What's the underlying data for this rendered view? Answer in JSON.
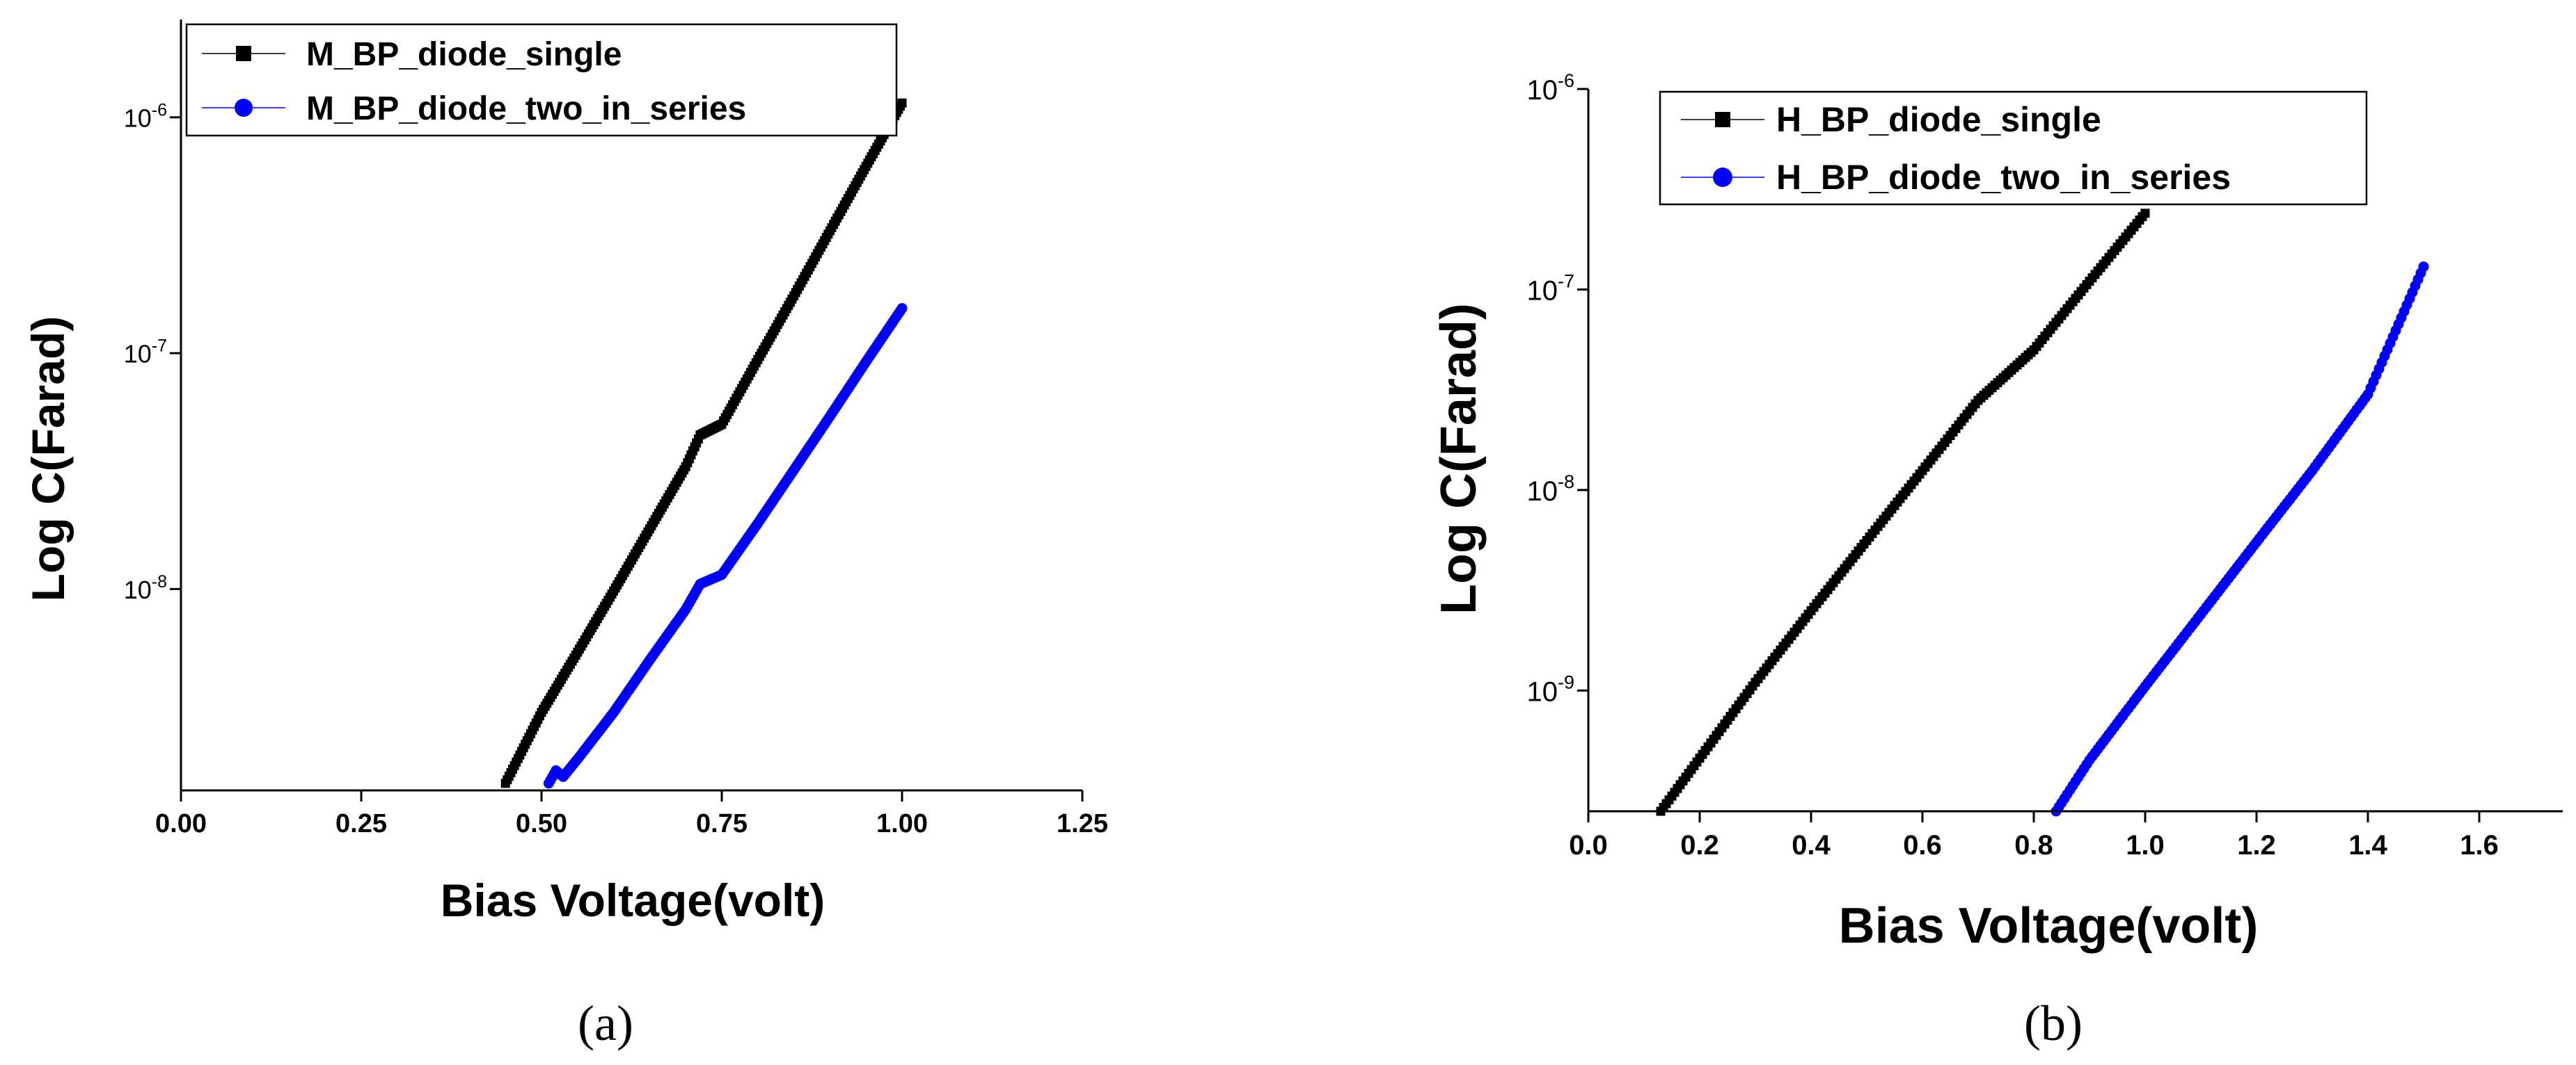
{
  "chart_data": [
    {
      "type": "line",
      "caption": "(a)",
      "xlabel": "Bias Voltage(volt)",
      "ylabel": "Log C(Farad)",
      "xscale": "linear",
      "yscale": "log",
      "xlim": [
        0,
        1.25
      ],
      "ylim": [
        1.4e-09,
        2.6e-06
      ],
      "xticks": [
        0,
        0.25,
        0.5,
        0.75,
        1.0,
        1.25
      ],
      "xtick_labels": [
        "0.00",
        "0.25",
        "0.50",
        "0.75",
        "1.00",
        "1.25"
      ],
      "yticks": [
        {
          "value": 1e-08,
          "mantissa": "10",
          "exponent": "-8"
        },
        {
          "value": 1e-07,
          "mantissa": "10",
          "exponent": "-7"
        },
        {
          "value": 1e-06,
          "mantissa": "10",
          "exponent": "-6"
        }
      ],
      "legend_position": "top-right",
      "series": [
        {
          "name": "M_BP_diode_single",
          "color": "#000000",
          "marker": "square",
          "x": [
            0.45,
            0.5,
            0.55,
            0.6,
            0.65,
            0.7,
            0.72,
            0.75,
            0.8,
            0.85,
            0.9,
            0.95,
            1.0
          ],
          "y": [
            1.5e-09,
            3e-09,
            5.4e-09,
            9.8e-09,
            1.8e-08,
            3.3e-08,
            4.5e-08,
            5e-08,
            9.4e-08,
            1.75e-07,
            3.3e-07,
            6.2e-07,
            1.15e-06
          ]
        },
        {
          "name": "M_BP_diode_two_in_series",
          "color": "#0000ff",
          "marker": "circle",
          "x": [
            0.51,
            0.52,
            0.53,
            0.55,
            0.6,
            0.65,
            0.7,
            0.72,
            0.75,
            0.8,
            0.85,
            0.9,
            0.95,
            1.0
          ],
          "y": [
            1.5e-09,
            1.7e-09,
            1.6e-09,
            1.9e-09,
            3e-09,
            5e-09,
            8.2e-09,
            1.05e-08,
            1.15e-08,
            1.9e-08,
            3.2e-08,
            5.4e-08,
            9.2e-08,
            1.55e-07
          ]
        }
      ]
    },
    {
      "type": "line",
      "caption": "(b)",
      "xlabel": "Bias Voltage(volt)",
      "ylabel": "Log C(Farad)",
      "xscale": "linear",
      "yscale": "log",
      "xlim": [
        0,
        1.75
      ],
      "ylim": [
        2.5e-10,
        1e-06
      ],
      "xticks": [
        0,
        0.2,
        0.4,
        0.6,
        0.8,
        1.0,
        1.2,
        1.4,
        1.6
      ],
      "xtick_labels": [
        "0.0",
        "0.2",
        "0.4",
        "0.6",
        "0.8",
        "1.0",
        "1.2",
        "1.4",
        "1.6"
      ],
      "yticks": [
        {
          "value": 1e-09,
          "mantissa": "10",
          "exponent": "-9"
        },
        {
          "value": 1e-08,
          "mantissa": "10",
          "exponent": "-8"
        },
        {
          "value": 1e-07,
          "mantissa": "10",
          "exponent": "-7"
        },
        {
          "value": 1e-06,
          "mantissa": "10",
          "exponent": "-6"
        }
      ],
      "legend_position": "top-left",
      "series": [
        {
          "name": "H_BP_diode_single",
          "color": "#000000",
          "marker": "square",
          "x": [
            0.13,
            0.2,
            0.3,
            0.4,
            0.5,
            0.6,
            0.7,
            0.8,
            0.9,
            1.0
          ],
          "y": [
            2.5e-10,
            4.6e-10,
            1.1e-09,
            2.5e-09,
            5.6e-09,
            1.25e-08,
            2.8e-08,
            5e-08,
            1.1e-07,
            2.4e-07
          ]
        },
        {
          "name": "H_BP_diode_two_in_series",
          "color": "#0000ff",
          "marker": "circle",
          "x": [
            0.84,
            0.9,
            1.0,
            1.1,
            1.2,
            1.3,
            1.4,
            1.5
          ],
          "y": [
            2.5e-10,
            4.5e-10,
            1.05e-09,
            2.4e-09,
            5.5e-09,
            1.25e-08,
            3e-08,
            1.3e-07
          ]
        }
      ]
    }
  ]
}
